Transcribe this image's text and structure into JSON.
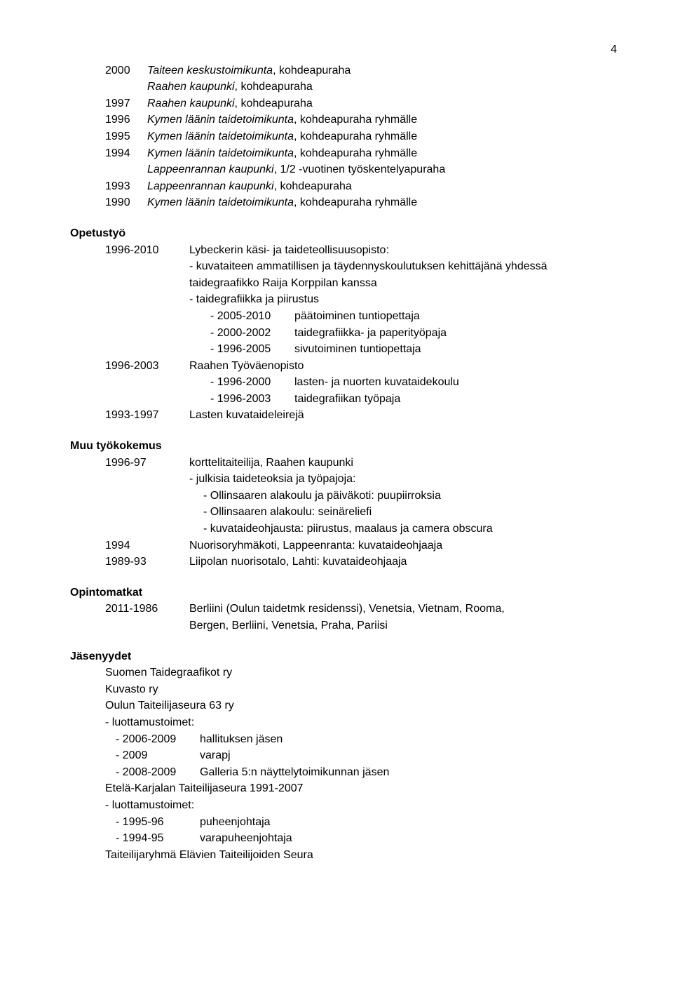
{
  "pageNumber": "4",
  "grants": [
    {
      "year": "2000",
      "text": "Taiteen keskustoimikunta",
      "suffix": ", kohdeapuraha"
    },
    {
      "year": "",
      "text": "Raahen kaupunki",
      "suffix": ", kohdeapuraha"
    },
    {
      "year": "1997",
      "text": "Raahen kaupunki",
      "suffix": ", kohdeapuraha"
    },
    {
      "year": "1996",
      "text": "Kymen läänin taidetoimikunta",
      "suffix": ", kohdeapuraha ryhmälle"
    },
    {
      "year": "1995",
      "text": "Kymen läänin taidetoimikunta",
      "suffix": ", kohdeapuraha ryhmälle"
    },
    {
      "year": "1994",
      "text": "Kymen läänin taidetoimikunta",
      "suffix": ", kohdeapuraha ryhmälle"
    },
    {
      "year": "",
      "text": "Lappeenrannan kaupunki",
      "suffix": ", 1/2 -vuotinen työskentelyapuraha"
    },
    {
      "year": "1993",
      "text": "Lappeenrannan kaupunki",
      "suffix": ", kohdeapuraha"
    },
    {
      "year": "1990",
      "text": "Kymen läänin taidetoimikunta",
      "suffix": ", kohdeapuraha ryhmälle"
    }
  ],
  "teaching": {
    "heading": "Opetustyö",
    "entries": [
      {
        "year": "1996-2010",
        "main": "Lybeckerin käsi- ja taideteollisuusopisto:",
        "lines": [
          "- kuvataiteen ammatillisen ja täydennyskoulutuksen kehittäjänä yhdessä",
          "  taidegraafikko Raija Korppilan kanssa",
          "- taidegrafiikka ja piirustus"
        ],
        "subs": [
          {
            "year": "- 2005-2010",
            "text": "päätoiminen tuntiopettaja"
          },
          {
            "year": "- 2000-2002",
            "text": "taidegrafiikka- ja paperityöpaja"
          },
          {
            "year": "- 1996-2005",
            "text": "sivutoiminen tuntiopettaja"
          }
        ]
      },
      {
        "year": "1996-2003",
        "main": "Raahen Työväenopisto",
        "lines": [],
        "subs": [
          {
            "year": "- 1996-2000",
            "text": "lasten- ja nuorten kuvataidekoulu"
          },
          {
            "year": "- 1996-2003",
            "text": "taidegrafiikan työpaja"
          }
        ]
      },
      {
        "year": "1993-1997",
        "main": "Lasten kuvataideleirejä",
        "lines": [],
        "subs": []
      }
    ]
  },
  "workexp": {
    "heading": "Muu työkokemus",
    "entries": [
      {
        "year": "1996-97",
        "main": "korttelitaiteilija, Raahen kaupunki",
        "lines": [
          "- julkisia taideteoksia ja työpajoja:"
        ],
        "sublines": [
          "- Ollinsaaren alakoulu ja päiväkoti: puupiirroksia",
          "- Ollinsaaren alakoulu: seinäreliefi",
          "- kuvataideohjausta: piirustus, maalaus ja camera obscura"
        ]
      },
      {
        "year": "1994",
        "main": "Nuorisoryhmäkoti, Lappeenranta: kuvataideohjaaja",
        "lines": [],
        "sublines": []
      },
      {
        "year": "1989-93",
        "main": "Liipolan nuorisotalo, Lahti: kuvataideohjaaja",
        "lines": [],
        "sublines": []
      }
    ]
  },
  "trips": {
    "heading": "Opintomatkat",
    "year": "2011-1986",
    "line1": "Berliini (Oulun taidetmk residenssi), Venetsia, Vietnam, Rooma,",
    "line2": "Bergen, Berliini, Venetsia, Praha, Pariisi"
  },
  "memberships": {
    "heading": "Jäsenyydet",
    "items": [
      {
        "name": "Suomen Taidegraafikot ry",
        "subs": []
      },
      {
        "name": "Kuvasto ry",
        "subs": []
      },
      {
        "name": "Oulun Taiteilijaseura 63 ry",
        "note": "- luottamustoimet:",
        "subs": [
          {
            "year": "- 2006-2009",
            "text": "hallituksen jäsen"
          },
          {
            "year": "- 2009",
            "text": "varapj"
          },
          {
            "year": "- 2008-2009",
            "text": "Galleria 5:n näyttelytoimikunnan jäsen"
          }
        ]
      },
      {
        "name": "Etelä-Karjalan Taiteilijaseura  1991-2007",
        "note": "- luottamustoimet:",
        "subs": [
          {
            "year": "- 1995-96",
            "text": "puheenjohtaja"
          },
          {
            "year": "- 1994-95",
            "text": "varapuheenjohtaja"
          }
        ]
      },
      {
        "name": "Taiteilijaryhmä Elävien Taiteilijoiden Seura",
        "subs": []
      }
    ]
  }
}
